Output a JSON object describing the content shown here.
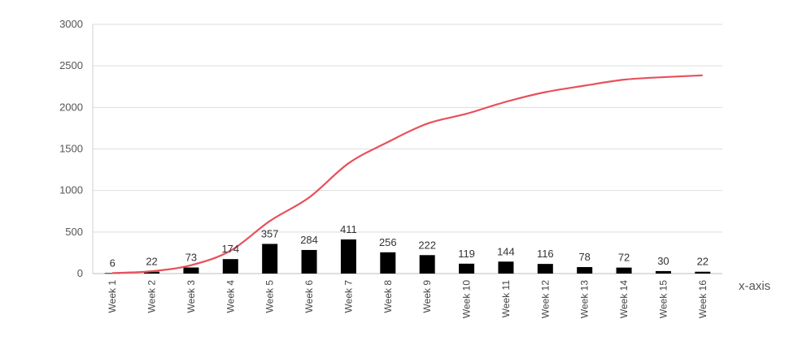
{
  "chart_data": {
    "type": "bar",
    "title": "",
    "xlabel": "x-axis",
    "ylabel": "",
    "ylim": [
      0,
      3000
    ],
    "yticks": [
      0,
      500,
      1000,
      1500,
      2000,
      2500,
      3000
    ],
    "grid": true,
    "categories": [
      "Week 1",
      "Week 2",
      "Week 3",
      "Week 4",
      "Week 5",
      "Week 6",
      "Week 7",
      "Week 8",
      "Week 9",
      "Week 10",
      "Week 11",
      "Week 12",
      "Week 13",
      "Week 14",
      "Week 15",
      "Week 16"
    ],
    "series": [
      {
        "type": "bar",
        "color": "#000000",
        "values": [
          6,
          22,
          73,
          174,
          357,
          284,
          411,
          256,
          222,
          119,
          144,
          116,
          78,
          72,
          30,
          22
        ]
      },
      {
        "type": "line",
        "color": "#e8505b",
        "values": [
          6,
          28,
          101,
          275,
          632,
          916,
          1327,
          1583,
          1805,
          1924,
          2068,
          2184,
          2262,
          2334,
          2364,
          2386
        ]
      }
    ]
  }
}
